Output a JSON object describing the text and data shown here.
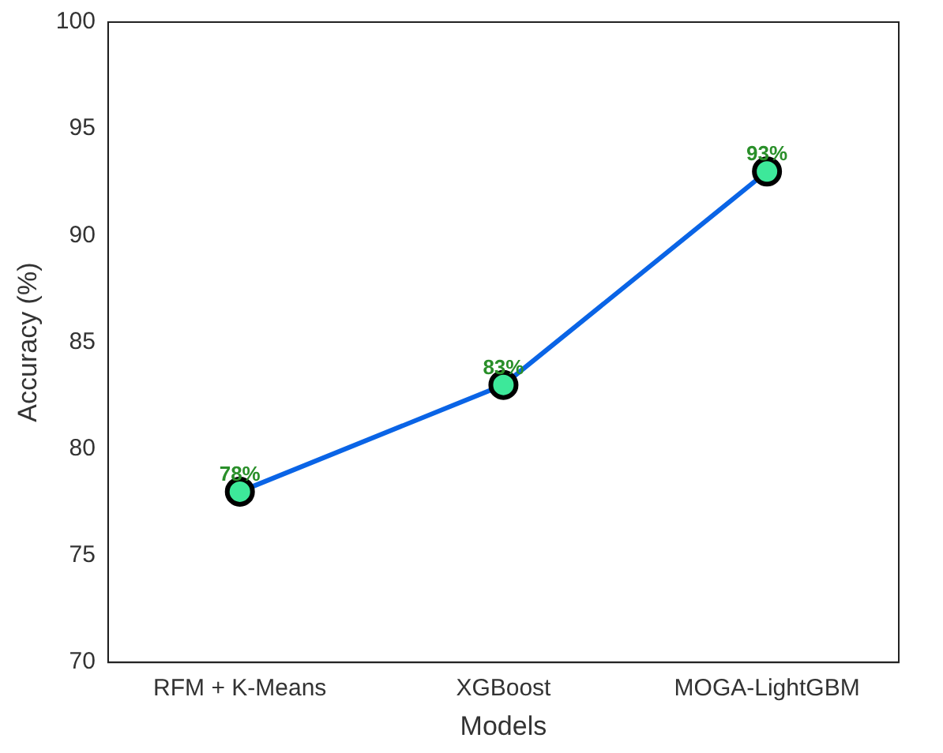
{
  "chart_data": {
    "type": "line",
    "xlabel": "Models",
    "ylabel": "Accuracy (%)",
    "categories": [
      "RFM + K-Means",
      "XGBoost",
      "MOGA-LightGBM"
    ],
    "series": [
      {
        "color": "#0a64e6",
        "colors": [
          "#3de89a",
          "#3de89a",
          "#3de89a"
        ],
        "values": [
          78,
          83,
          93
        ],
        "value_labels": [
          "78%",
          "83%",
          "93%"
        ]
      }
    ],
    "ylim": [
      70,
      100
    ],
    "yticks": [
      70,
      75,
      80,
      85,
      90,
      95,
      100
    ],
    "grid": false,
    "legend": false,
    "marker": "circle",
    "line_style": "solid"
  }
}
